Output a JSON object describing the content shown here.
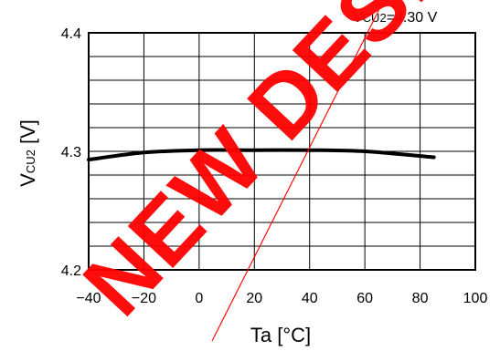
{
  "chart_data": {
    "type": "line",
    "xlabel": "Ta [°C]",
    "ylabel": {
      "main": "V",
      "sub": "CU2",
      "rest": " [V]"
    },
    "annotation": {
      "main": "V",
      "sub": "CU2",
      "rest": "=4.30 V"
    },
    "xlim": [
      -40,
      100
    ],
    "ylim": [
      4.2,
      4.4
    ],
    "x_ticks": [
      -40,
      -20,
      0,
      20,
      40,
      60,
      80,
      100
    ],
    "x_tick_labels": [
      "−40",
      "−20",
      "0",
      "20",
      "40",
      "60",
      "80",
      "100"
    ],
    "y_ticks": [
      4.2,
      4.3,
      4.4
    ],
    "y_tick_labels": [
      "4.2",
      "4.3",
      "4.4"
    ],
    "grid": true,
    "series": [
      {
        "x": [
          -40,
          -20,
          0,
          20,
          40,
          60,
          85
        ],
        "y": [
          4.293,
          4.299,
          4.301,
          4.301,
          4.301,
          4.3,
          4.295
        ],
        "color": "#000000"
      }
    ]
  },
  "watermark": {
    "text": "NEW DESIGN",
    "color": "#ff0000"
  }
}
